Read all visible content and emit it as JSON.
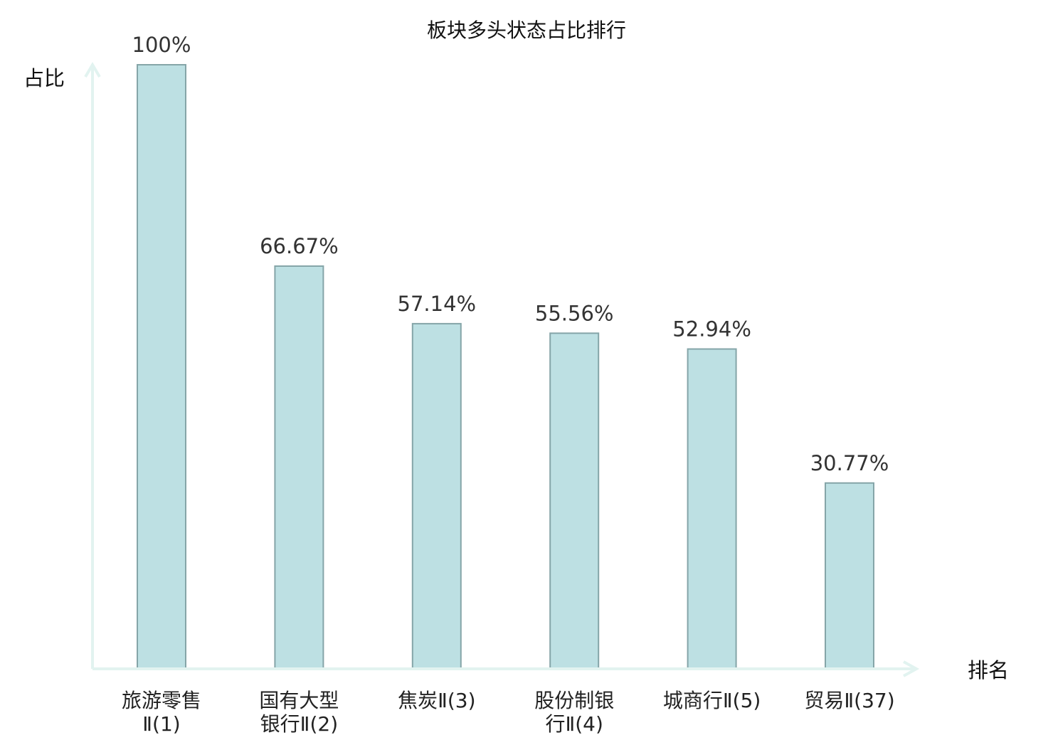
{
  "chart_data": {
    "type": "bar",
    "title": "板块多头状态占比排行",
    "xlabel": "排名",
    "ylabel": "占比",
    "ylim": [
      0,
      100
    ],
    "grid": false,
    "categories": [
      [
        "旅游零售",
        "Ⅱ(1)"
      ],
      [
        "国有大型",
        "银行Ⅱ(2)"
      ],
      [
        "焦炭Ⅱ(3)"
      ],
      [
        "股份制银",
        "行Ⅱ(4)"
      ],
      [
        "城商行Ⅱ(5)"
      ],
      [
        "贸易Ⅱ(37)"
      ]
    ],
    "values": [
      100,
      66.67,
      57.14,
      55.56,
      52.94,
      30.77
    ],
    "value_labels": [
      "100%",
      "66.67%",
      "57.14%",
      "55.56%",
      "52.94%",
      "30.77%"
    ],
    "highlight_index": 5,
    "colors": {
      "bar_fill": "#bde0e3",
      "bar_stroke": "#85a5a8",
      "axis": "#e2f3f0",
      "label": "#222222",
      "highlight_label": "#d9211b"
    }
  }
}
